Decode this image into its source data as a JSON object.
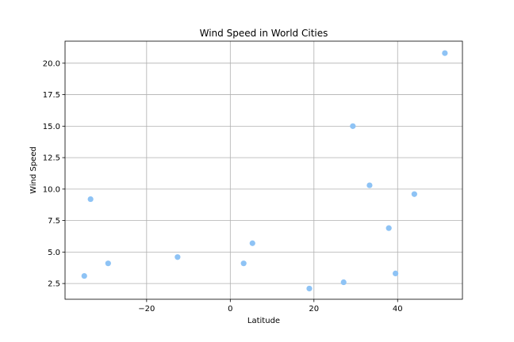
{
  "chart_data": {
    "type": "scatter",
    "title": "Wind Speed in World Cities",
    "xlabel": "Latitude",
    "ylabel": "Wind Speed",
    "xlim": [
      -39.5,
      55.5
    ],
    "ylim": [
      1.25,
      21.75
    ],
    "xticks": [
      -20,
      0,
      20,
      40
    ],
    "xtick_labels": [
      "−20",
      "0",
      "20",
      "40"
    ],
    "yticks": [
      2.5,
      5.0,
      7.5,
      10.0,
      12.5,
      15.0,
      17.5,
      20.0
    ],
    "ytick_labels": [
      "2.5",
      "5.0",
      "7.5",
      "10.0",
      "12.5",
      "15.0",
      "17.5",
      "20.0"
    ],
    "grid": true,
    "marker_color": "#8ec3f5",
    "series": [
      {
        "points": [
          {
            "x": -34.9,
            "y": 3.1
          },
          {
            "x": -33.4,
            "y": 9.2
          },
          {
            "x": -29.2,
            "y": 4.1
          },
          {
            "x": -12.6,
            "y": 4.6
          },
          {
            "x": 3.2,
            "y": 4.1
          },
          {
            "x": 5.3,
            "y": 5.7
          },
          {
            "x": 18.9,
            "y": 2.1
          },
          {
            "x": 27.1,
            "y": 2.6
          },
          {
            "x": 29.3,
            "y": 15.0
          },
          {
            "x": 33.3,
            "y": 10.3
          },
          {
            "x": 37.9,
            "y": 6.9
          },
          {
            "x": 39.5,
            "y": 3.3
          },
          {
            "x": 44.0,
            "y": 9.6
          },
          {
            "x": 51.3,
            "y": 20.8
          }
        ]
      }
    ]
  }
}
